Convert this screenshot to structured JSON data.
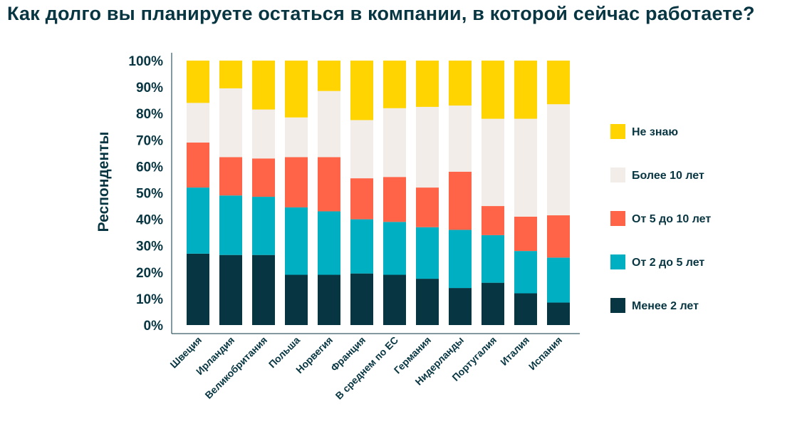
{
  "chart_data": {
    "type": "bar",
    "stacked": true,
    "title": "Как долго вы планируете остаться в компании, в которой сейчас работаете?",
    "xlabel": "",
    "ylabel": "Респонденты",
    "ylim": [
      0,
      100
    ],
    "yticks": [
      "0%",
      "10%",
      "20%",
      "30%",
      "40%",
      "50%",
      "60%",
      "70%",
      "80%",
      "90%",
      "100%"
    ],
    "categories": [
      "Швеция",
      "Ирландия",
      "Великобритания",
      "Польша",
      "Норвегия",
      "Франция",
      "В среднем по ЕС",
      "Германия",
      "Нидерланды",
      "Португалия",
      "Италия",
      "Испания"
    ],
    "series": [
      {
        "name": "Менее 2 лет",
        "color": "#073642",
        "values": [
          27,
          26.5,
          26.5,
          19,
          19,
          19.5,
          19,
          17.5,
          14,
          16,
          12,
          8.5
        ]
      },
      {
        "name": "От 2 до 5 лет",
        "color": "#00afc2",
        "values": [
          25,
          22.5,
          22,
          25.5,
          24,
          20.5,
          20,
          19.5,
          22,
          18,
          16,
          17
        ]
      },
      {
        "name": "От 5 до 10 лет",
        "color": "#ff6449",
        "values": [
          17,
          14.5,
          14.5,
          19,
          20.5,
          15.5,
          17,
          15,
          22,
          11,
          13,
          16
        ]
      },
      {
        "name": "Более 10 лет",
        "color": "#f2ede8",
        "values": [
          15,
          26,
          18.5,
          15,
          25,
          22,
          26,
          30.5,
          25,
          33,
          37,
          42
        ]
      },
      {
        "name": "Не знаю",
        "color": "#ffd400",
        "values": [
          16,
          10.5,
          18.5,
          21.5,
          11.5,
          22.5,
          18,
          17.5,
          17,
          22,
          22,
          16.5
        ]
      }
    ],
    "legend": [
      "Не знаю",
      "Более 10 лет",
      "От 5 до 10 лет",
      "От 2 до 5 лет",
      "Менее 2 лет"
    ],
    "legend_position": "right",
    "grid": false
  }
}
